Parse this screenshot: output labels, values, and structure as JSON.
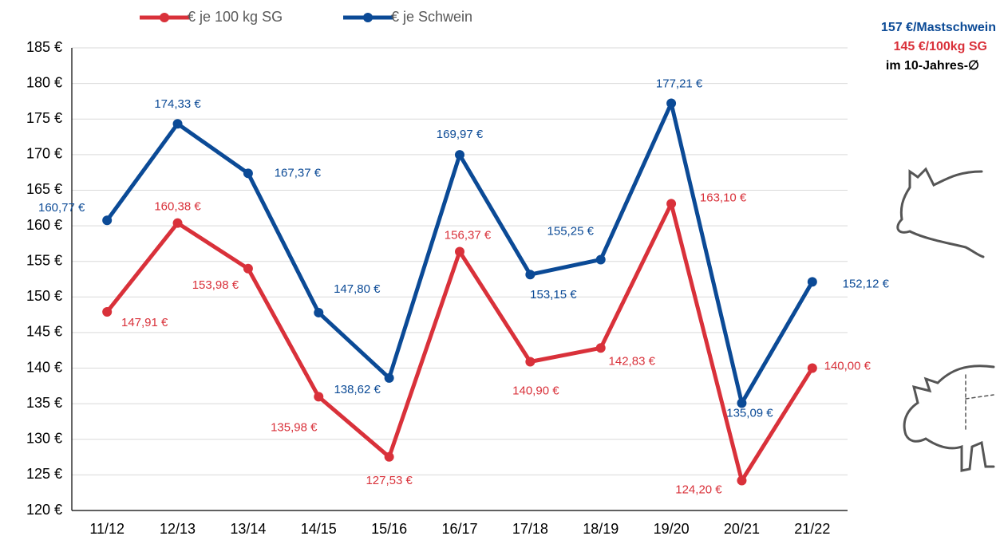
{
  "chart_data": {
    "type": "line",
    "categories": [
      "11/12",
      "12/13",
      "13/14",
      "14/15",
      "15/16",
      "16/17",
      "17/18",
      "18/19",
      "19/20",
      "20/21",
      "21/22"
    ],
    "series": [
      {
        "name": "€ je 100 kg SG",
        "color": "#d9313a",
        "values": [
          147.91,
          160.38,
          153.98,
          135.98,
          127.53,
          156.37,
          140.9,
          142.83,
          163.1,
          124.2,
          140.0
        ],
        "value_labels": [
          "147,91 €",
          "160,38 €",
          "153,98 €",
          "135,98 €",
          "127,53 €",
          "156,37 €",
          "140,90 €",
          "142,83 €",
          "163,10 €",
          "124,20 €",
          "140,00 €"
        ]
      },
      {
        "name": "€ je Schwein",
        "color": "#0b4a96",
        "values": [
          160.77,
          174.33,
          167.37,
          147.8,
          138.62,
          169.97,
          153.15,
          155.25,
          177.21,
          135.09,
          152.12
        ],
        "value_labels": [
          "160,77 €",
          "174,33 €",
          "167,37 €",
          "147,80 €",
          "138,62 €",
          "169,97 €",
          "153,15 €",
          "155,25 €",
          "177,21 €",
          "135,09 €",
          "152,12 €"
        ]
      }
    ],
    "ylim": [
      120,
      185
    ],
    "yticks": [
      {
        "value": 120,
        "label": "120 €"
      },
      {
        "value": 125,
        "label": "125 €"
      },
      {
        "value": 130,
        "label": "130 €"
      },
      {
        "value": 135,
        "label": "135 €"
      },
      {
        "value": 140,
        "label": "140 €"
      },
      {
        "value": 145,
        "label": "145 €"
      },
      {
        "value": 150,
        "label": "150 €"
      },
      {
        "value": 155,
        "label": "155 €"
      },
      {
        "value": 160,
        "label": "160 €"
      },
      {
        "value": 165,
        "label": "165 €"
      },
      {
        "value": 170,
        "label": "170 €"
      },
      {
        "value": 175,
        "label": "175 €"
      },
      {
        "value": 180,
        "label": "180 €"
      },
      {
        "value": 185,
        "label": "185 €"
      }
    ],
    "grid": true,
    "legend": "top",
    "annotations": [
      {
        "text": "157 €/Mastschwein",
        "color": "#0b4a96"
      },
      {
        "text": "145 €/100kg SG",
        "color": "#d9313a"
      },
      {
        "text": "im 10-Jahres-∅",
        "color": "#000000"
      }
    ]
  }
}
